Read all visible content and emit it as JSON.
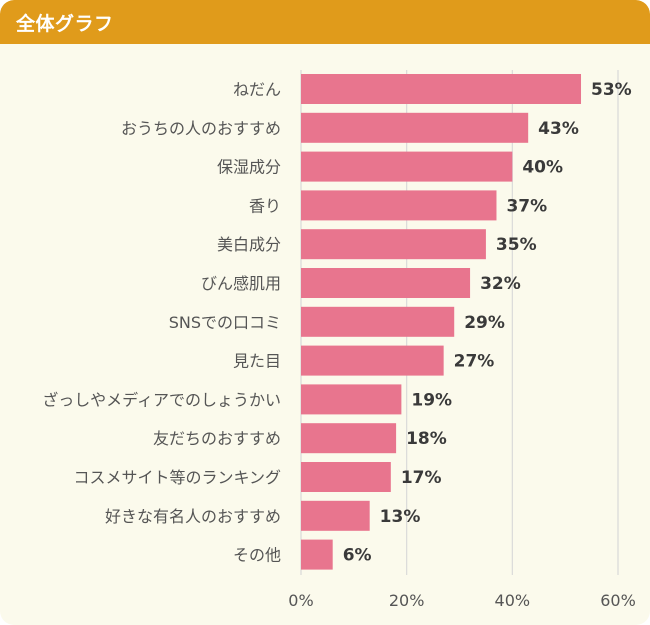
{
  "header": {
    "title": "全体グラフ"
  },
  "chart_data": {
    "type": "bar",
    "orientation": "horizontal",
    "categories": [
      "ねだん",
      "おうちの人のおすすめ",
      "保湿成分",
      "香り",
      "美白成分",
      "びん感肌用",
      "SNSでの口コミ",
      "見た目",
      "ざっしやメディアでのしょうかい",
      "友だちのおすすめ",
      "コスメサイト等のランキング",
      "好きな有名人のおすすめ",
      "その他"
    ],
    "values": [
      53,
      43,
      40,
      37,
      35,
      32,
      29,
      27,
      19,
      18,
      17,
      13,
      6
    ],
    "value_labels": [
      "53%",
      "43%",
      "40%",
      "37%",
      "35%",
      "32%",
      "29%",
      "27%",
      "19%",
      "18%",
      "17%",
      "13%",
      "6%"
    ],
    "x_ticks": [
      0,
      20,
      40,
      60
    ],
    "x_tick_labels": [
      "0%",
      "20%",
      "40%",
      "60%"
    ],
    "xlim": [
      0,
      60
    ],
    "grid": true,
    "colors": {
      "bar": "#e8758e",
      "grid": "#d9d9d9",
      "label_text": "#555555",
      "value_text": "#3a3a3a",
      "background": "#fbfaec",
      "header": "#e09b1b"
    }
  }
}
